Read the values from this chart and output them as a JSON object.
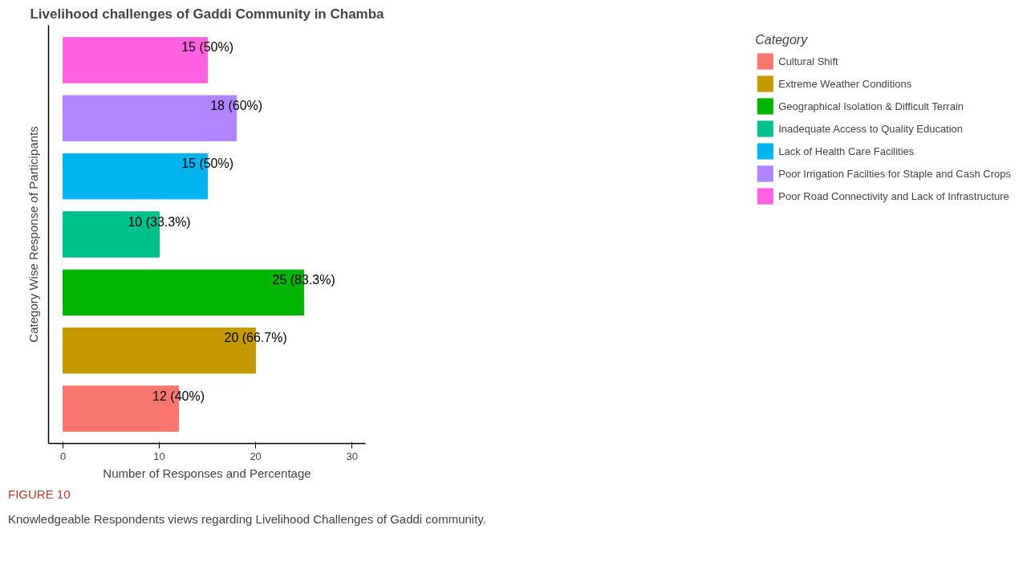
{
  "chart_data": {
    "type": "bar",
    "orientation": "horizontal",
    "title": "Livelihood challenges of Gaddi Community in Chamba",
    "xlabel": "Number of Responses and Percentage",
    "ylabel": "Category Wise Response of Participants",
    "legend_title": "Category",
    "legend": "right",
    "grid": false,
    "tick_labels": "x",
    "categories": [
      null,
      null,
      null,
      null,
      null,
      null,
      null
    ],
    "xlim": [
      -1.5,
      31.4
    ],
    "xticks": [
      0,
      10,
      20,
      30
    ],
    "series": [
      {
        "name": "Cultural Shift",
        "color": "#f8766d",
        "values": [
          null,
          null,
          null,
          null,
          null,
          null,
          12
        ],
        "value_labels": [
          null,
          null,
          null,
          null,
          null,
          null,
          "12 (40%)"
        ]
      },
      {
        "name": "Extreme Weather Conditions",
        "color": "#c49a00",
        "values": [
          null,
          null,
          null,
          null,
          null,
          20,
          null
        ],
        "value_labels": [
          null,
          null,
          null,
          null,
          null,
          "20 (66.7%)",
          null
        ]
      },
      {
        "name": "Geographical Isolation & Difficult Terrain",
        "color": "#00b400",
        "values": [
          null,
          null,
          null,
          null,
          25,
          null,
          null
        ],
        "value_labels": [
          null,
          null,
          null,
          null,
          "25 (83.3%)",
          null,
          null
        ]
      },
      {
        "name": "Inadequate Access to Quality Education",
        "color": "#00c08b",
        "values": [
          null,
          null,
          null,
          10,
          null,
          null,
          null
        ],
        "value_labels": [
          null,
          null,
          null,
          "10 (33.3%)",
          null,
          null,
          null
        ]
      },
      {
        "name": "Lack of Health Care Facilities",
        "color": "#00b4ef",
        "values": [
          null,
          null,
          15,
          null,
          null,
          null,
          null
        ],
        "value_labels": [
          null,
          null,
          "15 (50%)",
          null,
          null,
          null,
          null
        ]
      },
      {
        "name": "Poor Irrigation Facilties for Staple and Cash Crops",
        "color": "#b085ff",
        "values": [
          null,
          18,
          null,
          null,
          null,
          null,
          null
        ],
        "value_labels": [
          null,
          "18 (60%)",
          null,
          null,
          null,
          null,
          null
        ]
      },
      {
        "name": "Poor Road Connectivity and Lack of Infrastructure",
        "color": "#ff61e0",
        "values": [
          15,
          null,
          null,
          null,
          null,
          null,
          null
        ],
        "value_labels": [
          "15 (50%)",
          null,
          null,
          null,
          null,
          null,
          null
        ]
      }
    ],
    "annotations": [
      "FIGURE 10",
      "Knowledgeable Respondents views regarding Livelihood Challenges of Gaddi community."
    ]
  }
}
